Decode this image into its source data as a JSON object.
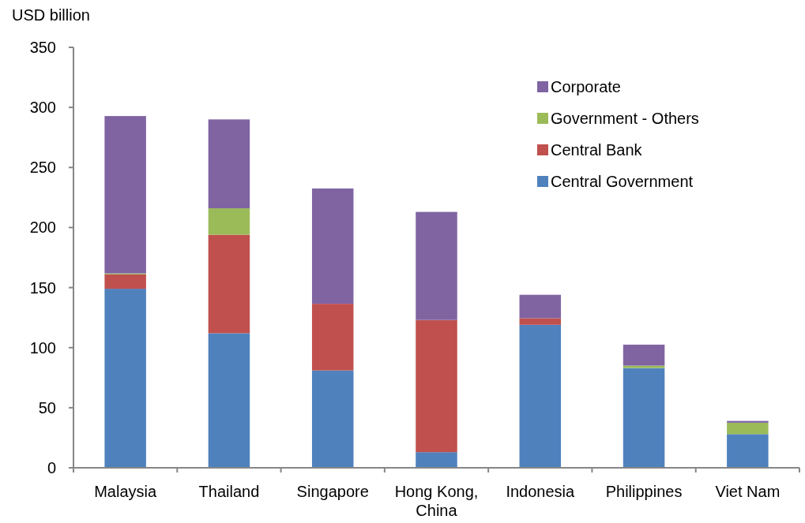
{
  "chart_data": {
    "type": "bar",
    "ylabel": "USD billion",
    "stacked": true,
    "legend": "top right",
    "categories": [
      "Malaysia",
      "Thailand",
      "Singapore",
      "Hong Kong, China",
      "Indonesia",
      "Philippines",
      "Viet Nam"
    ],
    "ylim": [
      0,
      350
    ],
    "yticks": [
      0,
      50,
      100,
      150,
      200,
      250,
      300,
      350
    ],
    "series": [
      {
        "name": "Central Government",
        "color": "#4f81bd",
        "values": [
          149,
          112,
          81,
          13,
          119,
          83,
          28
        ]
      },
      {
        "name": "Central Bank",
        "color": "#c0504d",
        "values": [
          12,
          82,
          55.5,
          110,
          5.5,
          0,
          0
        ]
      },
      {
        "name": "Government - Others",
        "color": "#9bbb59",
        "values": [
          0.8,
          22,
          0,
          0,
          0,
          2,
          9.5
        ]
      },
      {
        "name": "Corporate",
        "color": "#8064a2",
        "values": [
          131,
          74,
          96,
          90,
          19.5,
          17.5,
          1.5
        ]
      }
    ]
  }
}
